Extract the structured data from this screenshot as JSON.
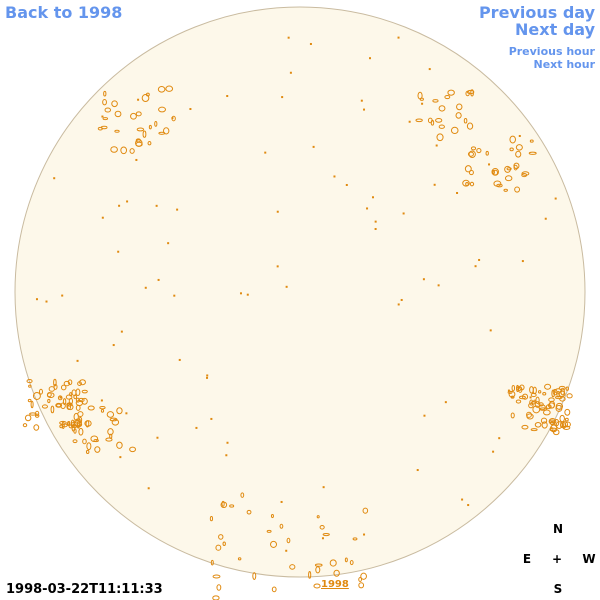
{
  "header": {
    "back_link": "Back to 1998",
    "previous_day": "Previous day",
    "next_day": "Next day",
    "previous_hour": "Previous hour",
    "next_hour": "Next hour"
  },
  "footer": {
    "timestamp": "1998-03-22T11:11:33",
    "year_link": "1998"
  },
  "compass": {
    "north": "N",
    "east": "E",
    "center": "+",
    "west": "W",
    "south": "S"
  }
}
